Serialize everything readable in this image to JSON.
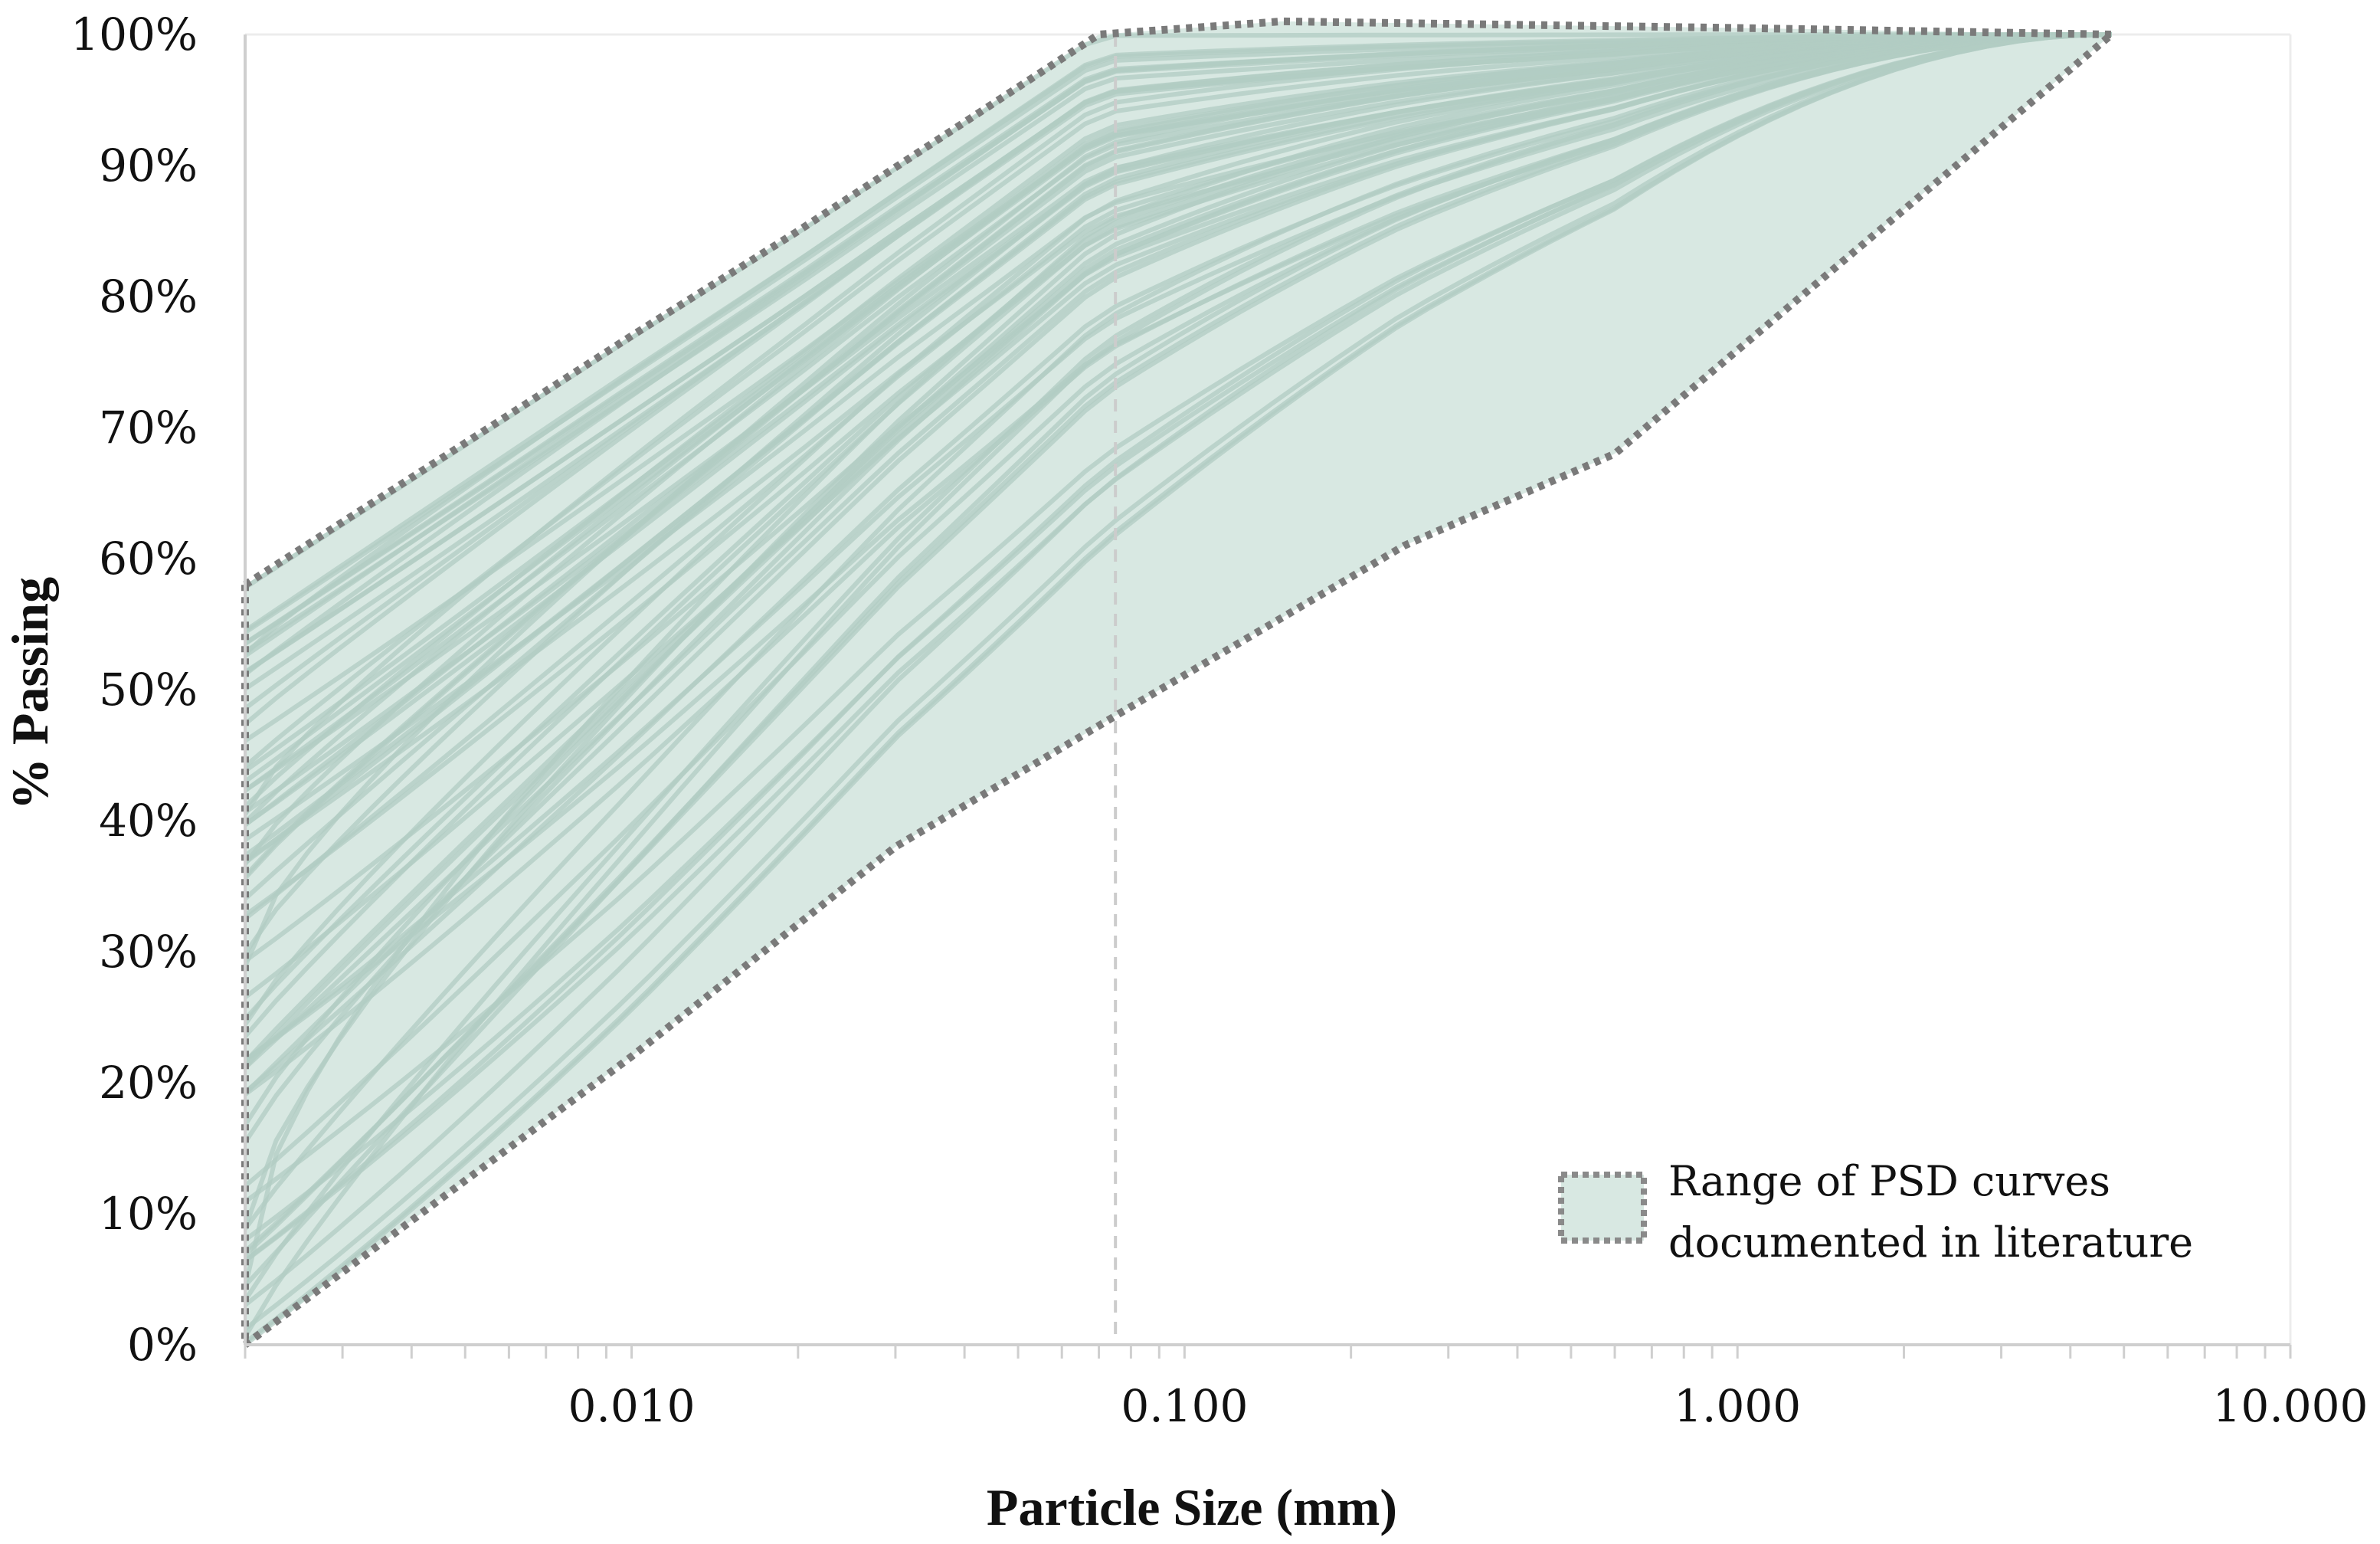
{
  "chart_data": {
    "type": "area",
    "xlabel": "Particle Size (mm)",
    "ylabel": "% Passing",
    "x_scale": "log",
    "xlim": [
      0.002,
      10
    ],
    "ylim": [
      0,
      100
    ],
    "x_ticks": [
      {
        "value": 0.01,
        "label": "0.010"
      },
      {
        "value": 0.1,
        "label": "0.100"
      },
      {
        "value": 1,
        "label": "1.000"
      },
      {
        "value": 10,
        "label": "10.000"
      }
    ],
    "y_ticks": [
      {
        "value": 0,
        "label": "0%"
      },
      {
        "value": 10,
        "label": "10%"
      },
      {
        "value": 20,
        "label": "20%"
      },
      {
        "value": 30,
        "label": "30%"
      },
      {
        "value": 40,
        "label": "40%"
      },
      {
        "value": 50,
        "label": "50%"
      },
      {
        "value": 60,
        "label": "60%"
      },
      {
        "value": 70,
        "label": "70%"
      },
      {
        "value": 80,
        "label": "80%"
      },
      {
        "value": 90,
        "label": "90%"
      },
      {
        "value": 100,
        "label": "100%"
      }
    ],
    "reference_line_x": 0.075,
    "upper_envelope": [
      {
        "x": 0.002,
        "y": 58
      },
      {
        "x": 0.01,
        "y": 77
      },
      {
        "x": 0.02,
        "y": 85
      },
      {
        "x": 0.07,
        "y": 100
      },
      {
        "x": 0.15,
        "y": 101
      },
      {
        "x": 1.0,
        "y": 100.5
      },
      {
        "x": 4.75,
        "y": 100
      }
    ],
    "lower_envelope": [
      {
        "x": 0.002,
        "y": 0
      },
      {
        "x": 0.01,
        "y": 22
      },
      {
        "x": 0.03,
        "y": 38
      },
      {
        "x": 0.075,
        "y": 48
      },
      {
        "x": 0.25,
        "y": 61
      },
      {
        "x": 0.6,
        "y": 68
      },
      {
        "x": 4.75,
        "y": 100
      }
    ],
    "grid": false,
    "legend": {
      "position": "bottom-right",
      "label_line1": "Range of PSD curves",
      "label_line2": "documented in literature"
    },
    "colors": {
      "fill": "#d8e8e2",
      "curve": "#b2ccc3",
      "envelope": "#7a7a7a",
      "axis": "#cfcfcf",
      "reference": "#cccccc"
    }
  }
}
